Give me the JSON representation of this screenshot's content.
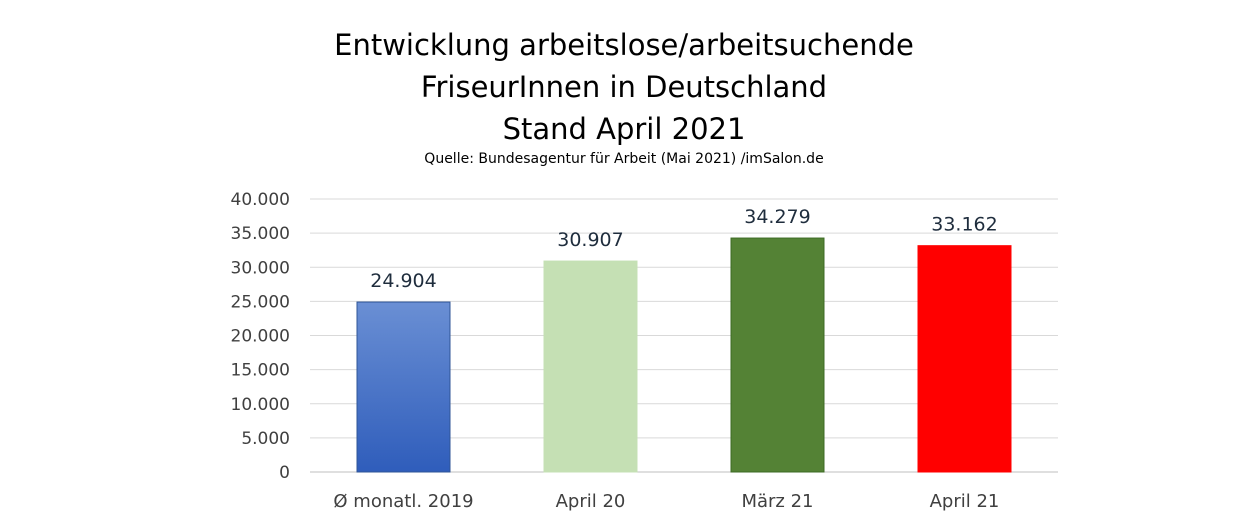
{
  "chart_data": {
    "type": "bar",
    "title_lines": [
      "Entwicklung arbeitslose/arbeitsuchende",
      "FriseurInnen in Deutschland",
      "Stand April 2021"
    ],
    "subtitle": "Quelle: Bundesagentur für Arbeit (Mai 2021) /imSalon.de",
    "categories": [
      "Ø monatl. 2019",
      "April 20",
      "März 21",
      "April 21"
    ],
    "values": [
      24904,
      30907,
      34279,
      33162
    ],
    "value_labels": [
      "24.904",
      "30.907",
      "34.279",
      "33.162"
    ],
    "bar_colors": [
      "#4472c4",
      "#c5e0b4",
      "#548235",
      "#ff0000"
    ],
    "ylim": [
      0,
      40000
    ],
    "yticks": [
      0,
      5000,
      10000,
      15000,
      20000,
      25000,
      30000,
      35000,
      40000
    ],
    "ytick_labels": [
      "0",
      "5.000",
      "10.000",
      "15.000",
      "20.000",
      "25.000",
      "30.000",
      "35.000",
      "40.000"
    ],
    "xlabel": "",
    "ylabel": "",
    "grid": true,
    "legend": "none"
  }
}
